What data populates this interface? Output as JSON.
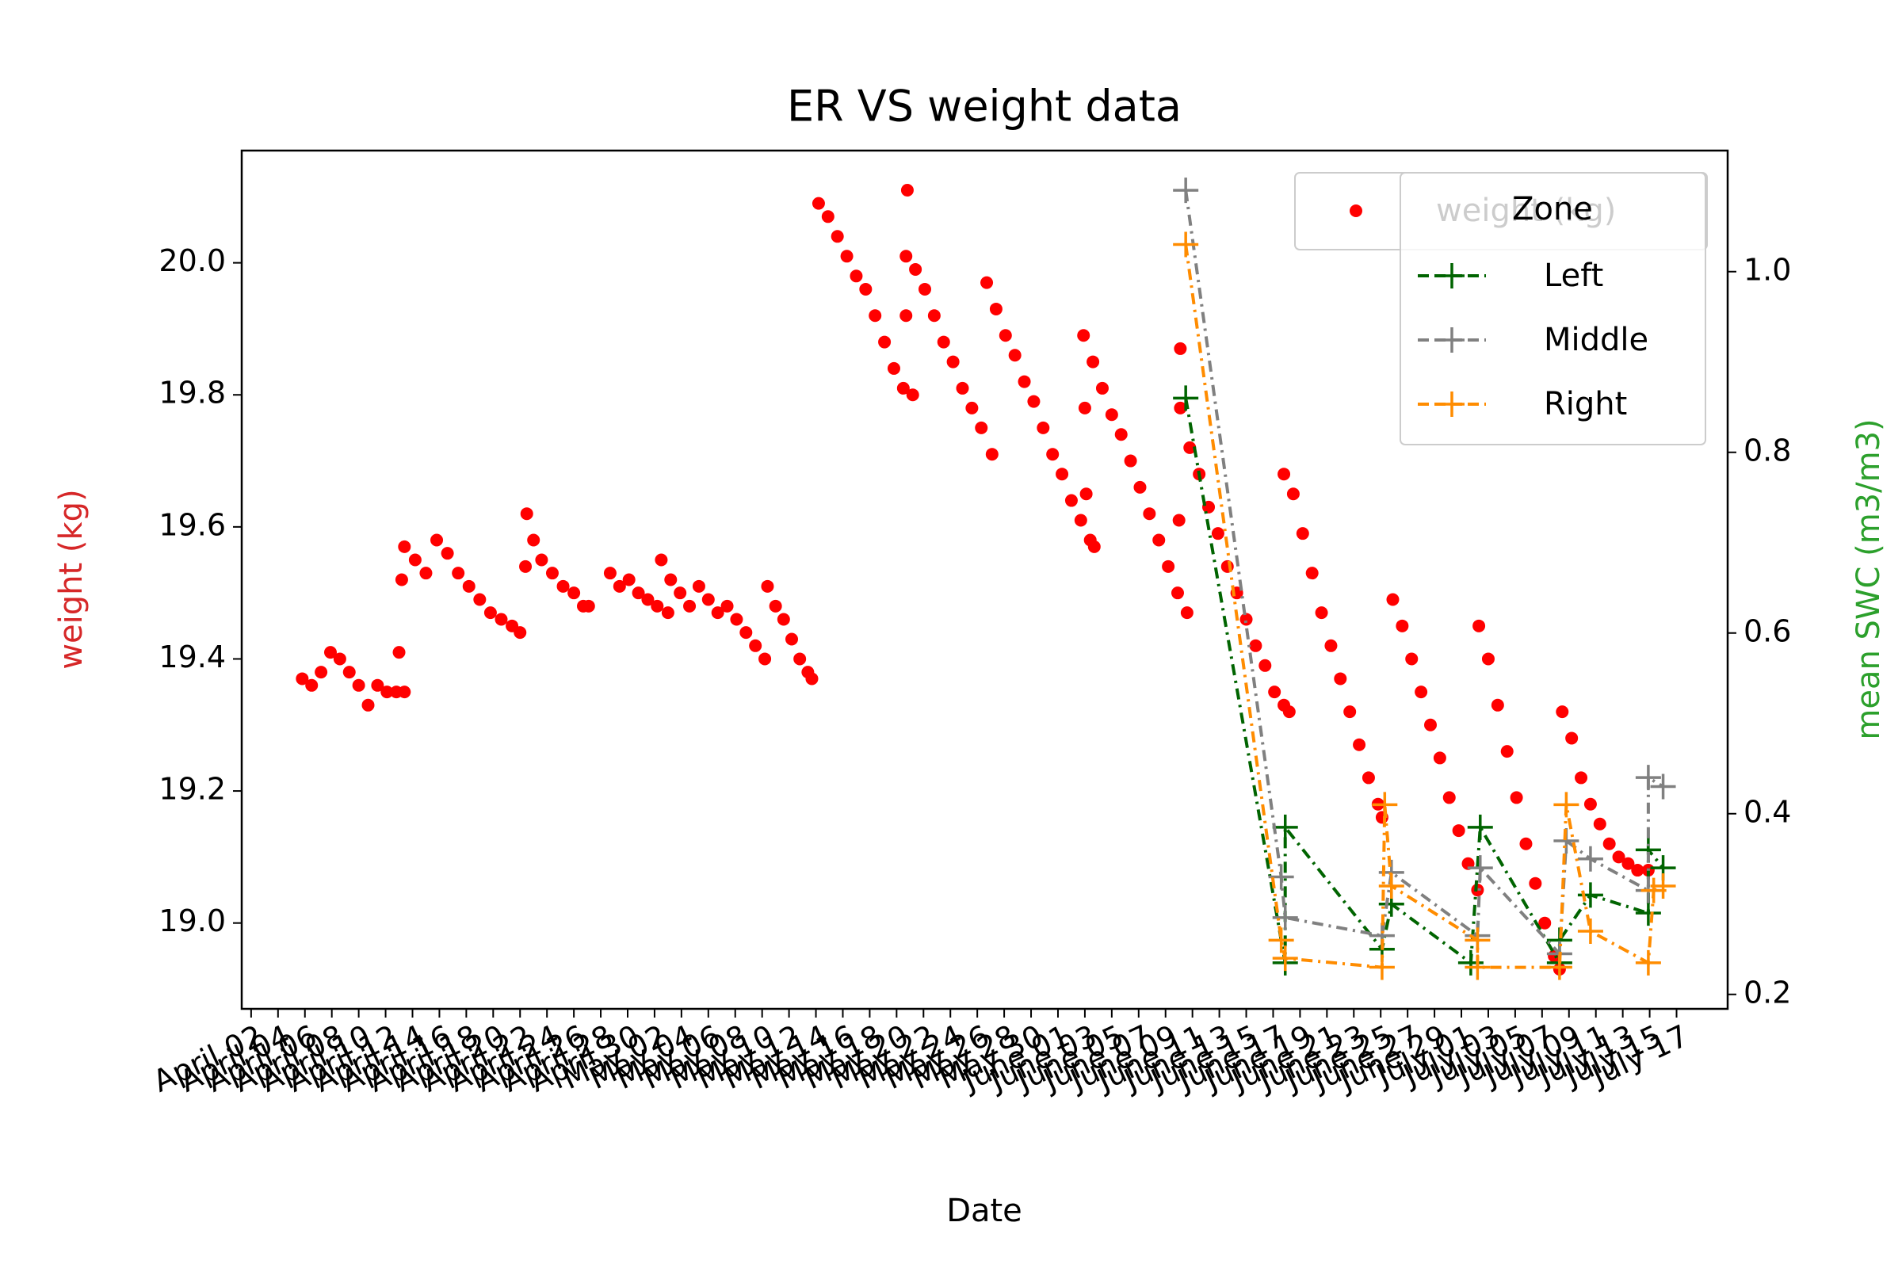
{
  "chart_data": {
    "type": "scatter",
    "title": "ER VS weight data",
    "x_label": "Date",
    "y_label": "weight (kg)",
    "y2_label": "mean SWC (m3/m3)",
    "legend_title": "Zone",
    "xlim": [
      1.3,
      111.8
    ],
    "ylim": [
      18.87,
      20.17
    ],
    "y2lim": [
      0.184,
      1.134
    ],
    "yticks": [
      {
        "value": 19,
        "label": "19.0"
      },
      19.2,
      19.4,
      19.6,
      19.8,
      {
        "value": 20,
        "label": "20.0"
      }
    ],
    "y2ticks": [
      0.2,
      0.4,
      0.6,
      0.8,
      {
        "value": 1,
        "label": "1.0"
      }
    ],
    "xticks": [
      {
        "value": 2,
        "label": "April 02"
      },
      {
        "value": 4,
        "label": "April 04"
      },
      {
        "value": 6,
        "label": "April 06"
      },
      {
        "value": 8,
        "label": "April 08"
      },
      {
        "value": 10,
        "label": "April 10"
      },
      {
        "value": 12,
        "label": "April 12"
      },
      {
        "value": 14,
        "label": "April 14"
      },
      {
        "value": 16,
        "label": "April 16"
      },
      {
        "value": 18,
        "label": "April 18"
      },
      {
        "value": 20,
        "label": "April 20"
      },
      {
        "value": 22,
        "label": "April 22"
      },
      {
        "value": 24,
        "label": "April 24"
      },
      {
        "value": 26,
        "label": "April 26"
      },
      {
        "value": 28,
        "label": "April 28"
      },
      {
        "value": 30,
        "label": "April 30"
      },
      {
        "value": 32,
        "label": "May 02"
      },
      {
        "value": 34,
        "label": "May 04"
      },
      {
        "value": 36,
        "label": "May 06"
      },
      {
        "value": 38,
        "label": "May 08"
      },
      {
        "value": 40,
        "label": "May 10"
      },
      {
        "value": 42,
        "label": "May 12"
      },
      {
        "value": 44,
        "label": "May 14"
      },
      {
        "value": 46,
        "label": "May 16"
      },
      {
        "value": 48,
        "label": "May 18"
      },
      {
        "value": 50,
        "label": "May 20"
      },
      {
        "value": 52,
        "label": "May 22"
      },
      {
        "value": 54,
        "label": "May 24"
      },
      {
        "value": 56,
        "label": "May 26"
      },
      {
        "value": 58,
        "label": "May 28"
      },
      {
        "value": 60,
        "label": "May 30"
      },
      {
        "value": 62,
        "label": "June 01"
      },
      {
        "value": 64,
        "label": "June 03"
      },
      {
        "value": 66,
        "label": "June 05"
      },
      {
        "value": 68,
        "label": "June 07"
      },
      {
        "value": 70,
        "label": "June 09"
      },
      {
        "value": 72,
        "label": "June 11"
      },
      {
        "value": 74,
        "label": "June 13"
      },
      {
        "value": 76,
        "label": "June 15"
      },
      {
        "value": 78,
        "label": "June 17"
      },
      {
        "value": 80,
        "label": "June 19"
      },
      {
        "value": 82,
        "label": "June 21"
      },
      {
        "value": 84,
        "label": "June 23"
      },
      {
        "value": 86,
        "label": "June 25"
      },
      {
        "value": 88,
        "label": "June 27"
      },
      {
        "value": 90,
        "label": "June 29"
      },
      {
        "value": 92,
        "label": "July 01"
      },
      {
        "value": 94,
        "label": "July 03"
      },
      {
        "value": 96,
        "label": "July 05"
      },
      {
        "value": 98,
        "label": "July 07"
      },
      {
        "value": 100,
        "label": "July 09"
      },
      {
        "value": 102,
        "label": "July 11"
      },
      {
        "value": 104,
        "label": "July 13"
      },
      {
        "value": 106,
        "label": "July 15"
      },
      {
        "value": 108,
        "label": "July 17"
      }
    ],
    "series": [
      {
        "name": "weight (kg)",
        "type": "scatter",
        "color": "#ff0000",
        "x": [
          5.8,
          6.5,
          7.2,
          7.9,
          8.6,
          9.3,
          10.0,
          10.7,
          11.4,
          12.1,
          12.8,
          13.4,
          13.0,
          13.2,
          13.4,
          14.2,
          15.0,
          15.8,
          16.6,
          17.4,
          18.2,
          19.0,
          19.8,
          20.6,
          21.4,
          22.0,
          22.4,
          22.5,
          23.0,
          23.6,
          24.4,
          25.2,
          26.0,
          26.7,
          27.1,
          28.7,
          29.4,
          30.1,
          30.8,
          31.5,
          32.2,
          33.0,
          32.5,
          33.2,
          33.9,
          34.6,
          35.3,
          36.0,
          36.7,
          37.4,
          38.1,
          38.8,
          39.5,
          40.2,
          40.4,
          41.0,
          41.6,
          42.2,
          42.8,
          43.4,
          43.7,
          44.2,
          44.9,
          45.6,
          46.3,
          47.0,
          47.7,
          48.4,
          49.1,
          49.8,
          50.5,
          51.2,
          50.8,
          50.7,
          50.7,
          51.4,
          52.1,
          52.8,
          53.5,
          54.2,
          54.9,
          55.6,
          56.3,
          57.1,
          56.7,
          57.4,
          58.1,
          58.8,
          59.5,
          60.2,
          60.9,
          61.6,
          62.3,
          63.0,
          63.7,
          64.4,
          64.7,
          64.0,
          64.1,
          63.9,
          64.6,
          65.3,
          66.0,
          66.7,
          67.4,
          68.1,
          68.8,
          69.5,
          70.2,
          70.9,
          71.6,
          71.1,
          71.1,
          71.0,
          71.8,
          72.5,
          73.2,
          73.9,
          74.6,
          75.3,
          76.0,
          76.7,
          77.4,
          78.1,
          78.8,
          79.2,
          78.8,
          79.5,
          80.2,
          80.9,
          81.6,
          82.3,
          83.0,
          83.7,
          84.4,
          85.1,
          85.8,
          86.1,
          86.9,
          87.6,
          88.3,
          89.0,
          89.7,
          90.4,
          91.1,
          91.8,
          92.5,
          93.2,
          93.3,
          94.0,
          94.7,
          95.4,
          96.1,
          96.8,
          97.5,
          98.2,
          98.9,
          99.3,
          99.5,
          100.2,
          100.9,
          101.6,
          102.3,
          103.0,
          103.7,
          104.4,
          105.1,
          105.9
        ],
        "values": [
          19.37,
          19.36,
          19.38,
          19.41,
          19.4,
          19.38,
          19.36,
          19.33,
          19.36,
          19.35,
          19.35,
          19.35,
          19.41,
          19.52,
          19.57,
          19.55,
          19.53,
          19.58,
          19.56,
          19.53,
          19.51,
          19.49,
          19.47,
          19.46,
          19.45,
          19.44,
          19.54,
          19.62,
          19.58,
          19.55,
          19.53,
          19.51,
          19.5,
          19.48,
          19.48,
          19.53,
          19.51,
          19.52,
          19.5,
          19.49,
          19.48,
          19.47,
          19.55,
          19.52,
          19.5,
          19.48,
          19.51,
          19.49,
          19.47,
          19.48,
          19.46,
          19.44,
          19.42,
          19.4,
          19.51,
          19.48,
          19.46,
          19.43,
          19.4,
          19.38,
          19.37,
          20.09,
          20.07,
          20.04,
          20.01,
          19.98,
          19.96,
          19.92,
          19.88,
          19.84,
          19.81,
          19.8,
          20.11,
          19.92,
          20.01,
          19.99,
          19.96,
          19.92,
          19.88,
          19.85,
          19.81,
          19.78,
          19.75,
          19.71,
          19.97,
          19.93,
          19.89,
          19.86,
          19.82,
          19.79,
          19.75,
          19.71,
          19.68,
          19.64,
          19.61,
          19.58,
          19.57,
          19.78,
          19.65,
          19.89,
          19.85,
          19.81,
          19.77,
          19.74,
          19.7,
          19.66,
          19.62,
          19.58,
          19.54,
          19.5,
          19.47,
          19.78,
          19.87,
          19.61,
          19.72,
          19.68,
          19.63,
          19.59,
          19.54,
          19.5,
          19.46,
          19.42,
          19.39,
          19.35,
          19.33,
          19.32,
          19.68,
          19.65,
          19.59,
          19.53,
          19.47,
          19.42,
          19.37,
          19.32,
          19.27,
          19.22,
          19.18,
          19.16,
          19.49,
          19.45,
          19.4,
          19.35,
          19.3,
          19.25,
          19.19,
          19.14,
          19.09,
          19.05,
          19.45,
          19.4,
          19.33,
          19.26,
          19.19,
          19.12,
          19.06,
          19.0,
          18.95,
          18.93,
          19.32,
          19.28,
          19.22,
          19.18,
          19.15,
          19.12,
          19.1,
          19.09,
          19.08,
          19.08
        ]
      },
      {
        "name": "Left",
        "type": "line",
        "axis": "y2",
        "color": "#006400",
        "x": [
          71.5,
          78.9,
          78.9,
          86.1,
          86.8,
          92.7,
          93.4,
          99.3,
          99.3,
          101.6,
          105.9,
          105.9,
          107.0
        ],
        "values": [
          0.86,
          0.235,
          0.385,
          0.25,
          0.3,
          0.235,
          0.385,
          0.235,
          0.26,
          0.31,
          0.29,
          0.36,
          0.34
        ]
      },
      {
        "name": "Middle",
        "type": "line",
        "axis": "y2",
        "color": "#808080",
        "x": [
          71.5,
          78.6,
          78.9,
          86.1,
          86.8,
          93.2,
          93.4,
          99.3,
          99.8,
          101.6,
          105.9,
          105.9,
          107.0
        ],
        "values": [
          1.09,
          0.33,
          0.285,
          0.265,
          0.335,
          0.265,
          0.34,
          0.245,
          0.37,
          0.35,
          0.315,
          0.44,
          0.43
        ]
      },
      {
        "name": "Right",
        "type": "line",
        "axis": "y2",
        "color": "#ff8c00",
        "x": [
          71.5,
          78.6,
          78.9,
          86.1,
          86.3,
          86.8,
          93.2,
          93.2,
          99.3,
          99.8,
          101.6,
          105.9,
          106.3,
          107.0
        ],
        "values": [
          1.03,
          0.26,
          0.24,
          0.23,
          0.41,
          0.32,
          0.26,
          0.23,
          0.23,
          0.41,
          0.27,
          0.235,
          0.315,
          0.32
        ]
      }
    ]
  }
}
